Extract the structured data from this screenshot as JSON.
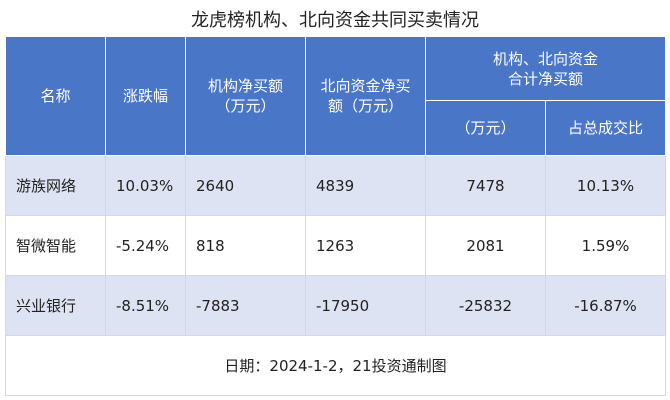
{
  "title": "龙虎榜机构、北向资金共同买卖情况",
  "header": {
    "columns": [
      "名称",
      "涨跌幅",
      "机构净买额\n（万元）",
      "北向资金净买\n额（万元）"
    ],
    "group": "机构、北向资金\n合计净买额",
    "subcolumns": [
      "（万元）",
      "占总成交比"
    ]
  },
  "table": {
    "rows": [
      [
        "游族网络",
        "10.03%",
        "2640",
        "4839",
        "7478",
        "10.13%"
      ],
      [
        "智微智能",
        "-5.24%",
        "818",
        "1263",
        "2081",
        "1.59%"
      ],
      [
        "兴业银行",
        "-8.51%",
        "-7883",
        "-17950",
        "-25832",
        "-16.87%"
      ]
    ]
  },
  "footer": "日期：2024-1-2，21投资通制图"
}
